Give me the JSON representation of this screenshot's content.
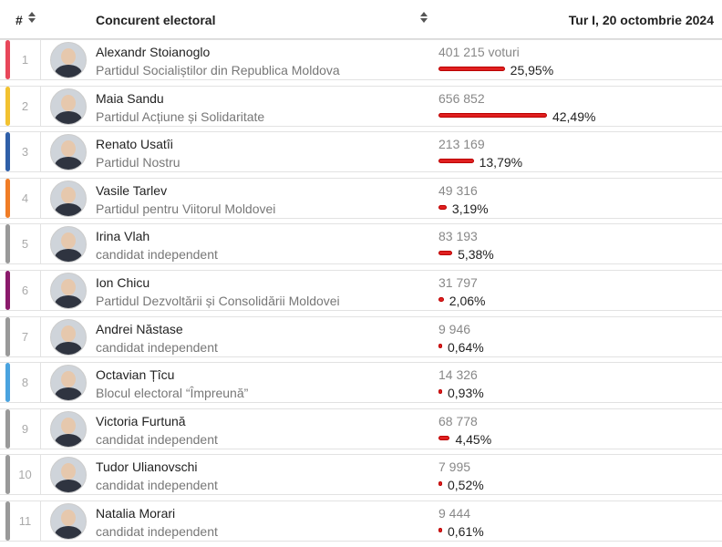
{
  "header": {
    "num_label": "#",
    "candidate_label": "Concurent electoral",
    "round_label": "Tur I, 20 octombrie 2024"
  },
  "icons": {
    "sort": "sort-icon"
  },
  "candidates": [
    {
      "rank": "1",
      "name": "Alexandr Stoianoglo",
      "party": "Partidul Socialiștilor din Republica Moldova",
      "votes": "401 215 voturi",
      "percent_label": "25,95%",
      "percent": 25.95,
      "color": "#e8475a"
    },
    {
      "rank": "2",
      "name": "Maia Sandu",
      "party": "Partidul Acțiune și Solidaritate",
      "votes": "656 852",
      "percent_label": "42,49%",
      "percent": 42.49,
      "color": "#f2c230"
    },
    {
      "rank": "3",
      "name": "Renato Usatîi",
      "party": "Partidul Nostru",
      "votes": "213 169",
      "percent_label": "13,79%",
      "percent": 13.79,
      "color": "#2f5fa8"
    },
    {
      "rank": "4",
      "name": "Vasile Tarlev",
      "party": "Partidul pentru Viitorul Moldovei",
      "votes": "49 316",
      "percent_label": "3,19%",
      "percent": 3.19,
      "color": "#f07d26"
    },
    {
      "rank": "5",
      "name": "Irina Vlah",
      "party": "candidat independent",
      "votes": "83 193",
      "percent_label": "5,38%",
      "percent": 5.38,
      "color": "#999999"
    },
    {
      "rank": "6",
      "name": "Ion Chicu",
      "party": "Partidul Dezvoltării și Consolidării Moldovei",
      "votes": "31 797",
      "percent_label": "2,06%",
      "percent": 2.06,
      "color": "#8b1a6b"
    },
    {
      "rank": "7",
      "name": "Andrei Năstase",
      "party": "candidat independent",
      "votes": "9 946",
      "percent_label": "0,64%",
      "percent": 0.64,
      "color": "#999999"
    },
    {
      "rank": "8",
      "name": "Octavian Țîcu",
      "party": "Blocul electoral “Împreună”",
      "votes": "14 326",
      "percent_label": "0,93%",
      "percent": 0.93,
      "color": "#4aa3df"
    },
    {
      "rank": "9",
      "name": "Victoria Furtună",
      "party": "candidat independent",
      "votes": "68 778",
      "percent_label": "4,45%",
      "percent": 4.45,
      "color": "#999999"
    },
    {
      "rank": "10",
      "name": "Tudor Ulianovschi",
      "party": "candidat independent",
      "votes": "7 995",
      "percent_label": "0,52%",
      "percent": 0.52,
      "color": "#999999"
    },
    {
      "rank": "11",
      "name": "Natalia Morari",
      "party": "candidat independent",
      "votes": "9 444",
      "percent_label": "0,61%",
      "percent": 0.61,
      "color": "#999999"
    }
  ]
}
